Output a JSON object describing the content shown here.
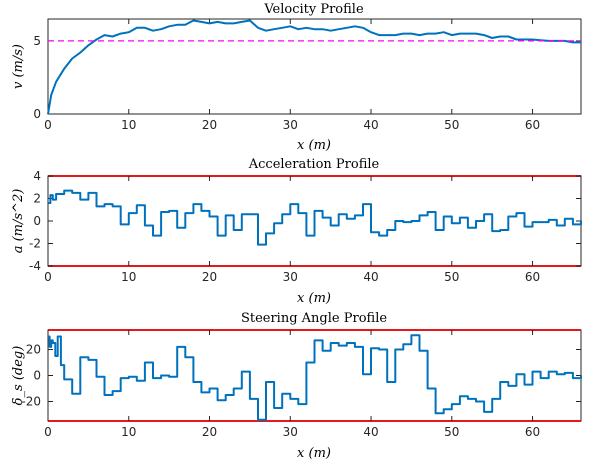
{
  "chart_data": [
    {
      "type": "line",
      "title": "Velocity Profile",
      "xlabel": "x (m)",
      "ylabel": "v (m/s)",
      "xlim": [
        0,
        66
      ],
      "ylim": [
        0,
        6.5
      ],
      "xticks": [
        0,
        10,
        20,
        30,
        40,
        50,
        60
      ],
      "yticks": [
        0,
        5
      ],
      "series": [
        {
          "color": "#0072bd",
          "style": "solid",
          "x": [
            0,
            0.4,
            1,
            2,
            3,
            4,
            5,
            6,
            7,
            8,
            9,
            10,
            11,
            12,
            13,
            14,
            15,
            16,
            17,
            18,
            19,
            20,
            21,
            22,
            23,
            24,
            25,
            26,
            27,
            28,
            29,
            30,
            31,
            32,
            33,
            34,
            35,
            36,
            37,
            38,
            39,
            40,
            41,
            42,
            43,
            44,
            45,
            46,
            47,
            48,
            49,
            50,
            51,
            52,
            53,
            54,
            55,
            56,
            57,
            58,
            59,
            60,
            61,
            62,
            63,
            64,
            65,
            66
          ],
          "y": [
            0,
            1.3,
            2.2,
            3.1,
            3.8,
            4.2,
            4.7,
            5.1,
            5.4,
            5.3,
            5.5,
            5.6,
            5.9,
            5.9,
            5.7,
            5.8,
            6.0,
            6.1,
            6.1,
            6.4,
            6.3,
            6.2,
            6.3,
            6.2,
            6.2,
            6.3,
            6.4,
            5.9,
            5.7,
            5.8,
            5.9,
            6.0,
            5.8,
            5.9,
            5.8,
            5.8,
            5.7,
            5.8,
            5.9,
            6.0,
            5.9,
            5.6,
            5.4,
            5.4,
            5.4,
            5.5,
            5.5,
            5.4,
            5.5,
            5.5,
            5.6,
            5.4,
            5.5,
            5.5,
            5.5,
            5.4,
            5.2,
            5.3,
            5.3,
            5.1,
            5.1,
            5.1,
            5.05,
            5.0,
            5.0,
            5.0,
            4.9,
            4.9
          ]
        },
        {
          "color": "#ff00ff",
          "style": "dashed",
          "x": [
            0,
            66
          ],
          "y": [
            5,
            5
          ]
        }
      ]
    },
    {
      "type": "line",
      "title": "Acceleration Profile",
      "xlabel": "x (m)",
      "ylabel": "a (m/s^2)",
      "xlim": [
        0,
        66
      ],
      "ylim": [
        -4,
        4
      ],
      "xticks": [
        0,
        10,
        20,
        30,
        40,
        50,
        60
      ],
      "yticks": [
        -4,
        -2,
        0,
        2,
        4
      ],
      "limits": [
        4,
        -4
      ],
      "series": [
        {
          "color": "#0072bd",
          "style": "step",
          "x": [
            0,
            0.3,
            0.6,
            1,
            1.5,
            2,
            3,
            4,
            5,
            6,
            7,
            8,
            9,
            10,
            11,
            12,
            13,
            14,
            15,
            16,
            17,
            18,
            19,
            20,
            21,
            22,
            23,
            24,
            25,
            26,
            27,
            28,
            29,
            30,
            31,
            32,
            33,
            34,
            35,
            36,
            37,
            38,
            39,
            40,
            41,
            42,
            43,
            44,
            45,
            46,
            47,
            48,
            49,
            50,
            51,
            52,
            53,
            54,
            55,
            56,
            57,
            58,
            59,
            60,
            61,
            62,
            63,
            64,
            65,
            66
          ],
          "y": [
            1.6,
            2.3,
            1.9,
            2.4,
            2.4,
            2.7,
            2.5,
            1.9,
            2.5,
            1.3,
            1.5,
            1.3,
            -0.3,
            0.7,
            1.4,
            -0.4,
            -1.3,
            0.8,
            0.9,
            -0.6,
            0.7,
            1.5,
            0.9,
            0.4,
            -1.3,
            0.5,
            -0.8,
            0.6,
            0.6,
            -2.1,
            -1.1,
            -0.2,
            0.6,
            1.5,
            0.7,
            -1.3,
            0.9,
            0.3,
            -0.4,
            0.6,
            0.2,
            0.5,
            1.5,
            -1.0,
            -1.3,
            -0.8,
            0.0,
            -0.1,
            0.0,
            0.5,
            0.8,
            -0.8,
            0.4,
            -0.2,
            0.3,
            -0.6,
            0.0,
            0.6,
            -0.9,
            -0.8,
            0.4,
            0.7,
            -0.5,
            -0.1,
            -0.1,
            0.1,
            -0.4,
            0.2,
            -0.3,
            0.0
          ]
        }
      ]
    },
    {
      "type": "line",
      "title": "Steering Angle Profile",
      "xlabel": "x (m)",
      "ylabel": "δ_s (deg)",
      "xlim": [
        0,
        66
      ],
      "ylim": [
        -35,
        35
      ],
      "xticks": [
        0,
        10,
        20,
        30,
        40,
        50,
        60
      ],
      "yticks": [
        -20,
        0,
        20
      ],
      "limits": [
        35,
        -35
      ],
      "series": [
        {
          "color": "#0072bd",
          "style": "step",
          "x": [
            0,
            0.2,
            0.4,
            0.6,
            0.9,
            1.2,
            1.6,
            2,
            3,
            4,
            5,
            6,
            7,
            8,
            9,
            10,
            11,
            12,
            13,
            14,
            15,
            16,
            17,
            18,
            19,
            20,
            21,
            22,
            23,
            24,
            25,
            26,
            27,
            28,
            29,
            30,
            31,
            32,
            33,
            34,
            35,
            36,
            37,
            38,
            39,
            40,
            41,
            42,
            43,
            44,
            45,
            46,
            47,
            48,
            49,
            50,
            51,
            52,
            53,
            54,
            55,
            56,
            57,
            58,
            59,
            60,
            61,
            62,
            63,
            64,
            65,
            66
          ],
          "y": [
            30,
            22,
            27,
            25,
            15,
            30,
            8,
            -3,
            -14,
            14,
            12,
            -1,
            -15,
            -12,
            -2,
            -1,
            -4,
            10,
            -2,
            0,
            -1,
            22,
            14,
            -5,
            -13,
            -10,
            -19,
            -15,
            -10,
            3,
            -18,
            -34,
            -5,
            -25,
            -14,
            -18,
            -22,
            10,
            27,
            19,
            25,
            23,
            25,
            22,
            1,
            21,
            20,
            -5,
            20,
            24,
            31,
            19,
            -10,
            -29,
            -26,
            -22,
            -16,
            -18,
            -20,
            -28,
            -18,
            -5,
            -8,
            1,
            -7,
            3,
            -2,
            3,
            1,
            2,
            -2,
            0
          ]
        }
      ]
    }
  ]
}
